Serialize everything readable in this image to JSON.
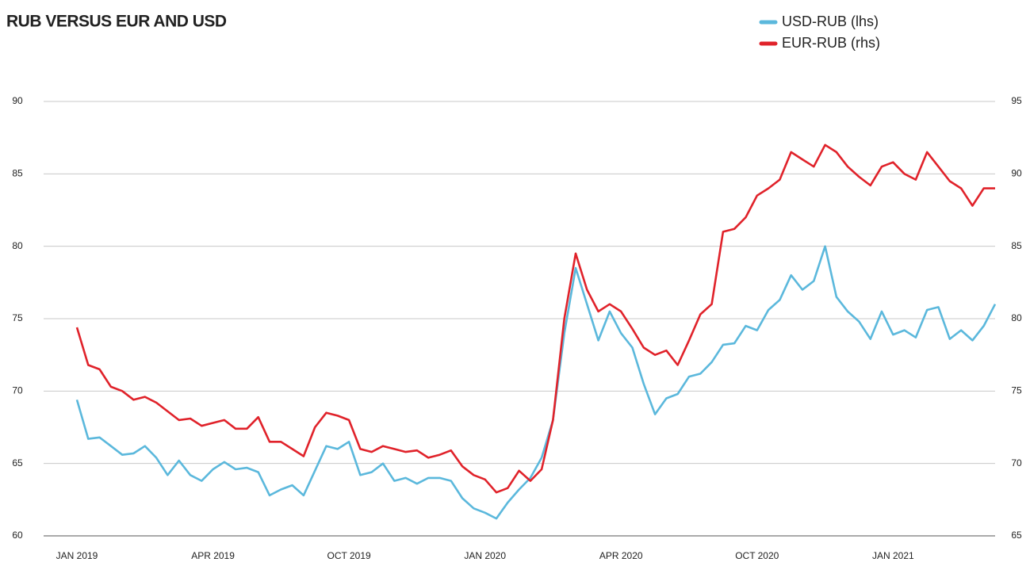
{
  "chart_data": {
    "type": "line",
    "title": "RUB VERSUS EUR AND USD",
    "categories": [
      "JAN 2019",
      null,
      null,
      null,
      null,
      null,
      null,
      null,
      null,
      null,
      null,
      null,
      "APR 2019",
      null,
      null,
      null,
      null,
      null,
      null,
      null,
      null,
      null,
      null,
      null,
      "OCT 2019",
      null,
      null,
      null,
      null,
      null,
      null,
      null,
      null,
      null,
      null,
      null,
      "JAN 2020",
      null,
      null,
      null,
      null,
      null,
      null,
      null,
      null,
      null,
      null,
      null,
      "APR 2020",
      null,
      null,
      null,
      null,
      null,
      null,
      null,
      null,
      null,
      null,
      null,
      "OCT 2020",
      null,
      null,
      null,
      null,
      null,
      null,
      null,
      null,
      null,
      null,
      null,
      "JAN 2021",
      null,
      null,
      null,
      null,
      null,
      null,
      null,
      null,
      null
    ],
    "series": [
      {
        "name": "USD-RUB (lhs)",
        "color": "#5bb8dc",
        "axis": "y",
        "values": [
          69.4,
          66.7,
          66.8,
          66.2,
          65.6,
          65.7,
          66.2,
          65.4,
          64.2,
          65.2,
          64.2,
          63.8,
          64.6,
          65.1,
          64.6,
          64.7,
          64.4,
          62.8,
          63.2,
          63.5,
          62.8,
          64.5,
          66.2,
          66.0,
          66.5,
          64.2,
          64.4,
          65.0,
          63.8,
          64.0,
          63.6,
          64.0,
          64.0,
          63.8,
          62.6,
          61.9,
          61.6,
          61.2,
          62.3,
          63.2,
          64.0,
          65.4,
          68.0,
          74.0,
          78.5,
          76.0,
          73.5,
          75.5,
          74.0,
          73.0,
          70.5,
          68.4,
          69.5,
          69.8,
          71.0,
          71.2,
          72.0,
          73.2,
          73.3,
          74.5,
          74.2,
          75.6,
          76.3,
          78.0,
          77.0,
          77.6,
          80.0,
          76.5,
          75.5,
          74.8,
          73.6,
          75.5,
          73.9,
          74.2,
          73.7,
          75.6,
          75.8,
          73.6,
          74.2,
          73.5,
          74.5,
          76.0
        ]
      },
      {
        "name": "EUR-RUB (rhs)",
        "color": "#e0222a",
        "axis": "y2",
        "values": [
          79.4,
          76.8,
          76.5,
          75.3,
          75.0,
          74.4,
          74.6,
          74.2,
          73.6,
          73.0,
          73.1,
          72.6,
          72.8,
          73.0,
          72.4,
          72.4,
          73.2,
          71.5,
          71.5,
          71.0,
          70.5,
          72.5,
          73.5,
          73.3,
          73.0,
          71.0,
          70.8,
          71.2,
          71.0,
          70.8,
          70.9,
          70.4,
          70.6,
          70.9,
          69.8,
          69.2,
          68.9,
          68.0,
          68.3,
          69.5,
          68.8,
          69.6,
          73.0,
          80.0,
          84.5,
          82.0,
          80.5,
          81.0,
          80.5,
          79.3,
          78.0,
          77.5,
          77.8,
          76.8,
          78.5,
          80.3,
          81.0,
          86.0,
          86.2,
          87.0,
          88.5,
          89.0,
          89.6,
          91.5,
          91.0,
          90.5,
          92.0,
          91.5,
          90.5,
          89.8,
          89.2,
          90.5,
          90.8,
          90.0,
          89.6,
          91.5,
          90.5,
          89.5,
          89.0,
          87.8,
          89.0,
          89.0
        ]
      }
    ],
    "ylim": [
      60,
      90
    ],
    "yticks": [
      60,
      65,
      70,
      75,
      80,
      85,
      90
    ],
    "y2lim": [
      65,
      95
    ],
    "y2ticks": [
      65,
      70,
      75,
      80,
      85,
      90,
      95
    ],
    "grid": true,
    "legend": "top-right"
  }
}
